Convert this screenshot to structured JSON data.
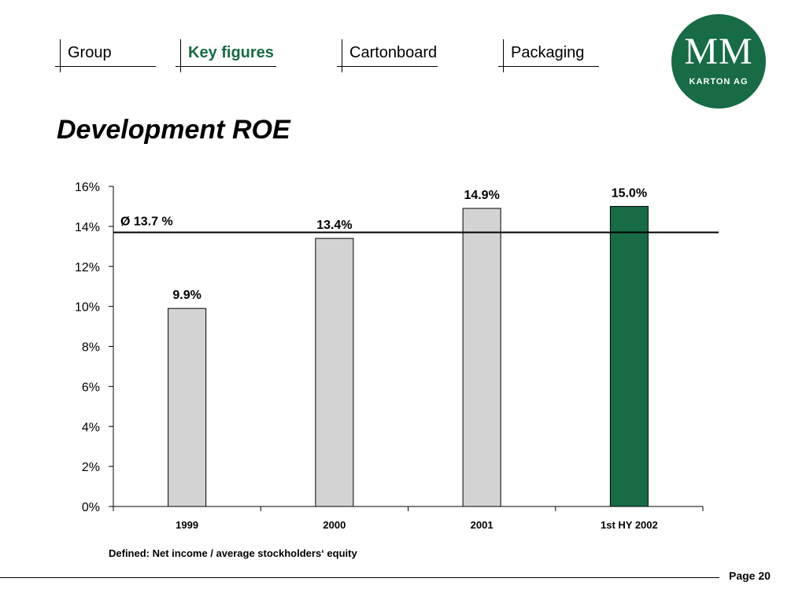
{
  "nav": {
    "tabs": [
      {
        "label": "Group",
        "active": false
      },
      {
        "label": "Key figures",
        "active": true
      },
      {
        "label": "Cartonboard",
        "active": false
      },
      {
        "label": "Packaging",
        "active": false
      }
    ]
  },
  "logo": {
    "mark": "MM",
    "sub": "KARTON AG"
  },
  "title": "Development ROE",
  "chart_data": {
    "type": "bar",
    "categories": [
      "1999",
      "2000",
      "2001",
      "1st HY 2002"
    ],
    "values": [
      9.9,
      13.4,
      14.9,
      15.0
    ],
    "value_labels": [
      "9.9%",
      "13.4%",
      "14.9%",
      "15.0%"
    ],
    "bar_colors": [
      "#d3d3d3",
      "#d3d3d3",
      "#d3d3d3",
      "#176b45"
    ],
    "ylim": [
      0,
      16
    ],
    "yticks": [
      0,
      2,
      4,
      6,
      8,
      10,
      12,
      14,
      16
    ],
    "ytick_labels": [
      "0%",
      "2%",
      "4%",
      "6%",
      "8%",
      "10%",
      "12%",
      "14%",
      "16%"
    ],
    "reference_line": {
      "value": 13.7,
      "label": "Ø 13.7 %"
    },
    "grid": false,
    "legend": "none"
  },
  "footnote": "Defined: Net income  / average stockholders‘ equity",
  "footer": {
    "page": "Page 20"
  },
  "colors": {
    "accent": "#176b45",
    "bar_default": "#d3d3d3"
  }
}
